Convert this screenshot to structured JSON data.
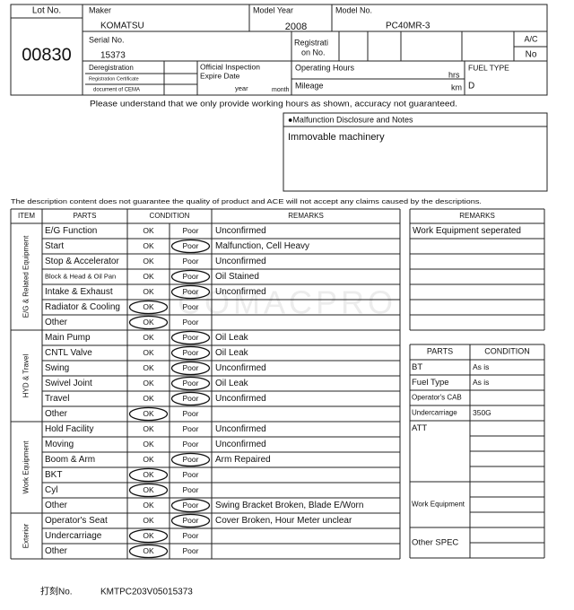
{
  "header": {
    "lot_no": {
      "label": "Lot No.",
      "value": "00830"
    },
    "maker": {
      "label": "Maker",
      "value": "KOMATSU"
    },
    "model_year": {
      "label": "Model Year",
      "value": "2008"
    },
    "model_no": {
      "label": "Model No.",
      "value": "PC40MR-3"
    },
    "serial_no": {
      "label": "Serial No.",
      "value": "15373"
    },
    "registration_no": {
      "label_lines": [
        "Registrati",
        "on No."
      ]
    },
    "ac": {
      "label": "A/C",
      "value": "No"
    },
    "deregistration": {
      "lines": [
        "Deregistration",
        "Registration Certificate",
        "document of CEMA"
      ]
    },
    "inspection": {
      "lines": [
        "Official Inspection",
        "Expire Date"
      ],
      "year": "year",
      "month": "month"
    },
    "operating_hours": {
      "label": "Operating Hours",
      "unit": "hrs"
    },
    "mileage": {
      "label": "Mileage",
      "unit": "km"
    },
    "fuel_type": {
      "label": "FUEL TYPE",
      "value": "D"
    }
  },
  "notice": "Please understand that we only provide working hours as shown, accuracy not guaranteed.",
  "malfunction": {
    "title": "●Malfunction Disclosure and Notes",
    "text": "Immovable machinery"
  },
  "disclaimer": "The description content does not guarantee the quality of product and ACE will not accept any claims caused by the descriptions.",
  "watermark": "COMACPRO",
  "condition_table": {
    "headers": [
      "ITEM",
      "PARTS",
      "CONDITION",
      "REMARKS"
    ],
    "ok_label": "OK",
    "poor_label": "Poor",
    "groups": [
      {
        "name": "E/G & Related Equipment",
        "rows": [
          {
            "part": "E/G Function",
            "remarks": "Unconfirmed"
          },
          {
            "part": "Start",
            "selected": "Poor",
            "remarks": "Malfunction, Cell Heavy"
          },
          {
            "part": "Stop & Accelerator",
            "remarks": "Unconfirmed"
          },
          {
            "part": "Block & Head & Oil Pan",
            "selected": "Poor",
            "remarks": "Oil Stained"
          },
          {
            "part": "Intake & Exhaust",
            "selected": "Poor",
            "remarks": "Unconfirmed"
          },
          {
            "part": "Radiator & Cooling",
            "selected": "OK"
          },
          {
            "part": "Other",
            "selected": "OK"
          }
        ]
      },
      {
        "name": "HYD & Travel",
        "rows": [
          {
            "part": "Main Pump",
            "selected": "Poor",
            "remarks": "Oil Leak"
          },
          {
            "part": "CNTL Valve",
            "selected": "Poor",
            "remarks": "Oil Leak"
          },
          {
            "part": "Swing",
            "selected": "Poor",
            "remarks": "Unconfirmed"
          },
          {
            "part": "Swivel Joint",
            "selected": "Poor",
            "remarks": "Oil Leak"
          },
          {
            "part": "Travel",
            "selected": "Poor",
            "remarks": "Unconfirmed"
          },
          {
            "part": "Other",
            "selected": "OK"
          }
        ]
      },
      {
        "name": "Work Equipment",
        "rows": [
          {
            "part": "Hold Facility",
            "remarks": "Unconfirmed"
          },
          {
            "part": "Moving",
            "remarks": "Unconfirmed"
          },
          {
            "part": "Boom & Arm",
            "selected": "Poor",
            "remarks": "Arm Repaired"
          },
          {
            "part": "BKT",
            "selected": "OK"
          },
          {
            "part": "Cyl",
            "selected": "OK"
          },
          {
            "part": "Other",
            "selected": "Poor",
            "remarks": "Swing Bracket Broken, Blade E/Worn"
          }
        ]
      },
      {
        "name": "Exterior",
        "rows": [
          {
            "part": "Operator's Seat",
            "selected": "Poor",
            "remarks": "Cover Broken, Hour Meter unclear"
          },
          {
            "part": "Undercarriage",
            "selected": "OK"
          },
          {
            "part": "Other",
            "selected": "OK"
          }
        ]
      }
    ]
  },
  "remarks_table": {
    "header": "REMARKS",
    "rows": [
      "Work Equipment seperated"
    ]
  },
  "parts_table": {
    "headers": [
      "PARTS",
      "CONDITION"
    ],
    "rows": [
      {
        "part": "BT",
        "condition": "As is"
      },
      {
        "part": "Fuel Type",
        "condition": "As is"
      },
      {
        "part": "Operator's CAB"
      },
      {
        "part": "Undercarriage",
        "condition": "350G"
      },
      {
        "part": "ATT"
      },
      {
        "part": "Work Equipment"
      },
      {
        "part": "Other SPEC"
      }
    ]
  },
  "footer": {
    "label": "打刻No.",
    "value": "KMTPC203V05015373"
  }
}
